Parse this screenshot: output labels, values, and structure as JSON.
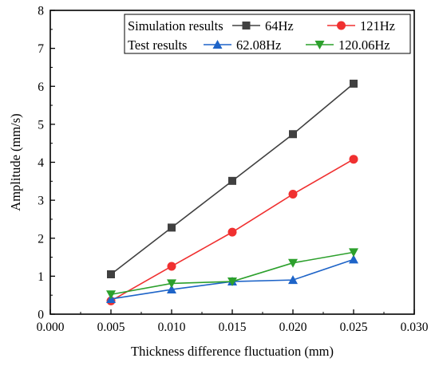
{
  "chart_data": {
    "type": "line",
    "xlabel": "Thickness difference fluctuation (mm)",
    "ylabel": "Amplitude (mm/s)",
    "xlim": [
      0.0,
      0.03
    ],
    "ylim": [
      0,
      8
    ],
    "xticks": [
      "0.000",
      "0.005",
      "0.010",
      "0.015",
      "0.020",
      "0.025",
      "0.030"
    ],
    "yticks": [
      "0",
      "1",
      "2",
      "3",
      "4",
      "5",
      "6",
      "7",
      "8"
    ],
    "x": [
      0.005,
      0.01,
      0.015,
      0.02,
      0.025
    ],
    "legend": {
      "placement": "top-right",
      "group_labels": [
        "Simulation results",
        "Test results"
      ]
    },
    "series": [
      {
        "name": "64Hz",
        "group": "Simulation results",
        "marker": "square",
        "color": "#404040",
        "values": [
          1.05,
          2.28,
          3.51,
          4.74,
          6.07
        ]
      },
      {
        "name": "121Hz",
        "group": "Simulation results",
        "marker": "circle",
        "color": "#f03030",
        "values": [
          0.35,
          1.26,
          2.16,
          3.16,
          4.08
        ]
      },
      {
        "name": "62.08Hz",
        "group": "Test results",
        "marker": "triangle-up",
        "color": "#1e64c8",
        "values": [
          0.4,
          0.65,
          0.86,
          0.9,
          1.44
        ]
      },
      {
        "name": "120.06Hz",
        "group": "Test results",
        "marker": "triangle-down",
        "color": "#2ca02c",
        "values": [
          0.52,
          0.81,
          0.86,
          1.35,
          1.63
        ]
      }
    ]
  }
}
